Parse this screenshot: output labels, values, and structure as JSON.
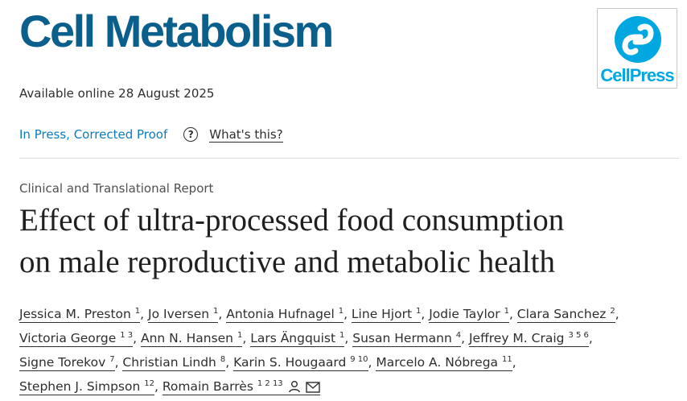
{
  "header": {
    "journal_name": "Cell Metabolism",
    "publisher_logo_text": "CellPress"
  },
  "availability": "Available online 28 August 2025",
  "status": {
    "label": "In Press, Corrected Proof",
    "help_icon": "question-circle-icon",
    "help_link": "What's this?"
  },
  "article": {
    "category": "Clinical and Translational Report",
    "title_line1": "Effect of ultra-processed food consumption",
    "title_line2": "on male reproductive and metabolic health"
  },
  "authors": [
    {
      "name": "Jessica M. Preston",
      "sup": "1"
    },
    {
      "name": "Jo Iversen",
      "sup": "1"
    },
    {
      "name": "Antonia Hufnagel",
      "sup": "1"
    },
    {
      "name": "Line Hjort",
      "sup": "1"
    },
    {
      "name": "Jodie Taylor",
      "sup": "1"
    },
    {
      "name": "Clara Sanchez",
      "sup": "2"
    },
    {
      "name": "Victoria George",
      "sup": "1 3"
    },
    {
      "name": "Ann N. Hansen",
      "sup": "1"
    },
    {
      "name": "Lars Ängquist",
      "sup": "1"
    },
    {
      "name": "Susan Hermann",
      "sup": "4"
    },
    {
      "name": "Jeffrey M. Craig",
      "sup": "3 5 6"
    },
    {
      "name": "Signe Torekov",
      "sup": "7"
    },
    {
      "name": "Christian Lindh",
      "sup": "8"
    },
    {
      "name": "Karin S. Hougaard",
      "sup": "9 10"
    },
    {
      "name": "Marcelo A. Nóbrega",
      "sup": "11"
    },
    {
      "name": "Stephen J. Simpson",
      "sup": "12"
    },
    {
      "name": "Romain Barrès",
      "sup": "1 2 13"
    }
  ],
  "icons": {
    "corresponding": "person-icon",
    "email": "envelope-icon"
  },
  "colors": {
    "journal": "#0a5f8d",
    "link": "#0c7dbb",
    "cellpress": "#00a7e1"
  }
}
